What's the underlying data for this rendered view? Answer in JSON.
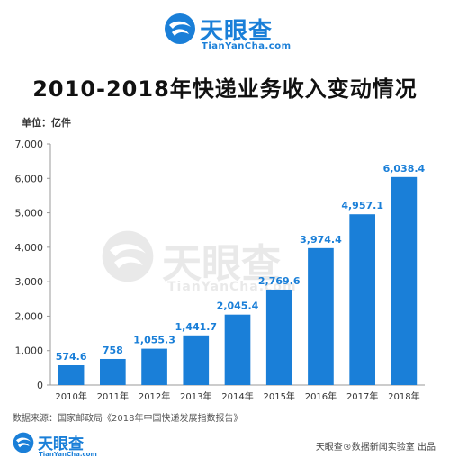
{
  "brand": {
    "name": "天眼查",
    "domain": "TianYanCha.com",
    "color": "#1a7fd8"
  },
  "unit_label": "单位：亿件",
  "source": "数据来源：国家邮政局《2018年中国快递发展指数报告》",
  "credit": "天眼查®数据新闻实验室 出品",
  "chart_data": {
    "type": "bar",
    "title": "2010-2018年快递业务收入变动情况",
    "categories": [
      "2010年",
      "2011年",
      "2012年",
      "2013年",
      "2014年",
      "2015年",
      "2016年",
      "2017年",
      "2018年"
    ],
    "values": [
      574.6,
      758,
      1055.3,
      1441.7,
      2045.4,
      2769.6,
      3974.4,
      4957.1,
      6038.4
    ],
    "value_labels": [
      "574.6",
      "758",
      "1,055.3",
      "1,441.7",
      "2,045.4",
      "2,769.6",
      "3,974.4",
      "4,957.1",
      "6,038.4"
    ],
    "yticks": [
      0,
      1000,
      2000,
      3000,
      4000,
      5000,
      6000,
      7000
    ],
    "ytick_labels": [
      "0",
      "1,000",
      "2,000",
      "3,000",
      "4,000",
      "5,000",
      "6,000",
      "7,000"
    ],
    "ylim": [
      0,
      7000
    ],
    "grid": false,
    "bar_color": "#1a7fd8",
    "label_color": "#1a7fd8"
  }
}
